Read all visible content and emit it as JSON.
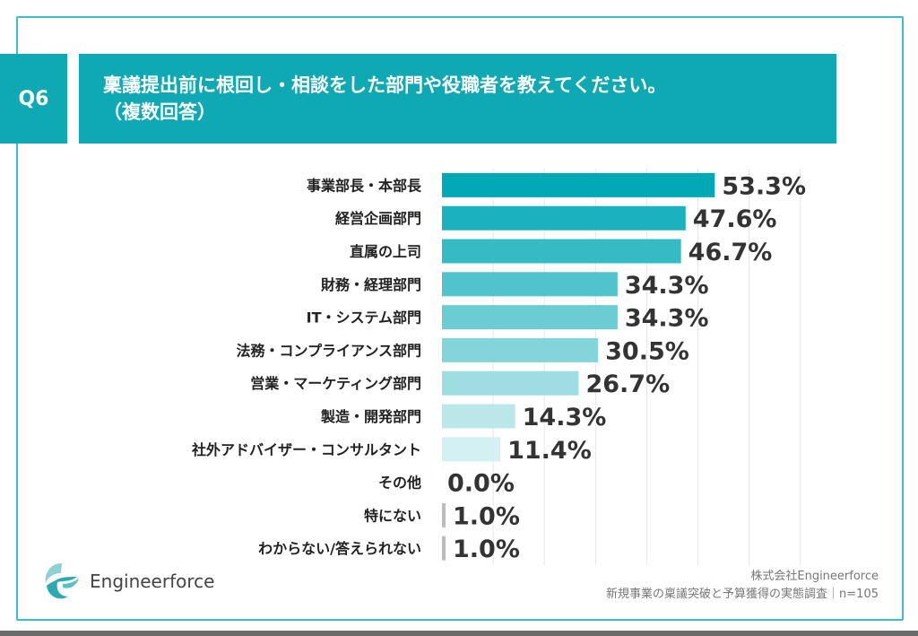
{
  "header": {
    "question_no": "Q6",
    "title": "稟議提出前に根回し・相談をした部門や役職者を教えてください。",
    "subtitle": "（複数回答）"
  },
  "chart_data": {
    "type": "bar",
    "orientation": "horizontal",
    "title": "稟議提出前に根回し・相談をした部門や役職者を教えてください。（複数回答）",
    "categories": [
      "事業部長・本部長",
      "経営企画部門",
      "直属の上司",
      "財務・経理部門",
      "IT・システム部門",
      "法務・コンプライアンス部門",
      "営業・マーケティング部門",
      "製造・開発部門",
      "社外アドバイザー・コンサルタント",
      "その他",
      "特にない",
      "わからない/答えられない"
    ],
    "values": [
      53.3,
      47.6,
      46.7,
      34.3,
      34.3,
      30.5,
      26.7,
      14.3,
      11.4,
      0.0,
      1.0,
      1.0
    ],
    "value_labels": [
      "53.3%",
      "47.6%",
      "46.7%",
      "34.3%",
      "34.3%",
      "30.5%",
      "26.7%",
      "14.3%",
      "11.4%",
      "0.0%",
      "1.0%",
      "1.0%"
    ],
    "xlim": [
      0,
      70
    ],
    "grid": true,
    "colors": {
      "main": "#00a9b5",
      "light": "#d3f0f2",
      "gray": "#bdbdbd"
    }
  },
  "footer": {
    "logo_text": "Engineerforce",
    "company": "株式会社Engineerforce",
    "survey": "新規事業の稟議突破と予算獲得の実態調査｜n=105"
  },
  "colors": {
    "accent": "#0fa9b4",
    "frame": "#3fbcc4"
  }
}
